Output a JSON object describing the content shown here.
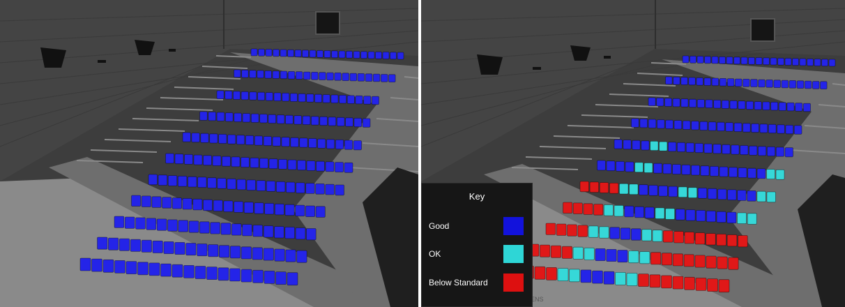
{
  "key": {
    "title": "Key",
    "items": [
      {
        "label": "Good",
        "color": "#1212dc"
      },
      {
        "label": "OK",
        "color": "#2ed6d6"
      },
      {
        "label": "Below Standard",
        "color": "#dd1010"
      }
    ]
  },
  "panels": [
    {
      "name": "all-good-view",
      "seat_colors": [
        "#2424e8"
      ]
    },
    {
      "name": "rated-view",
      "seat_colors": [
        "#2424e8",
        "#36d8d8",
        "#e01818"
      ]
    }
  ],
  "watermark": "HARKNESS SCREENS"
}
